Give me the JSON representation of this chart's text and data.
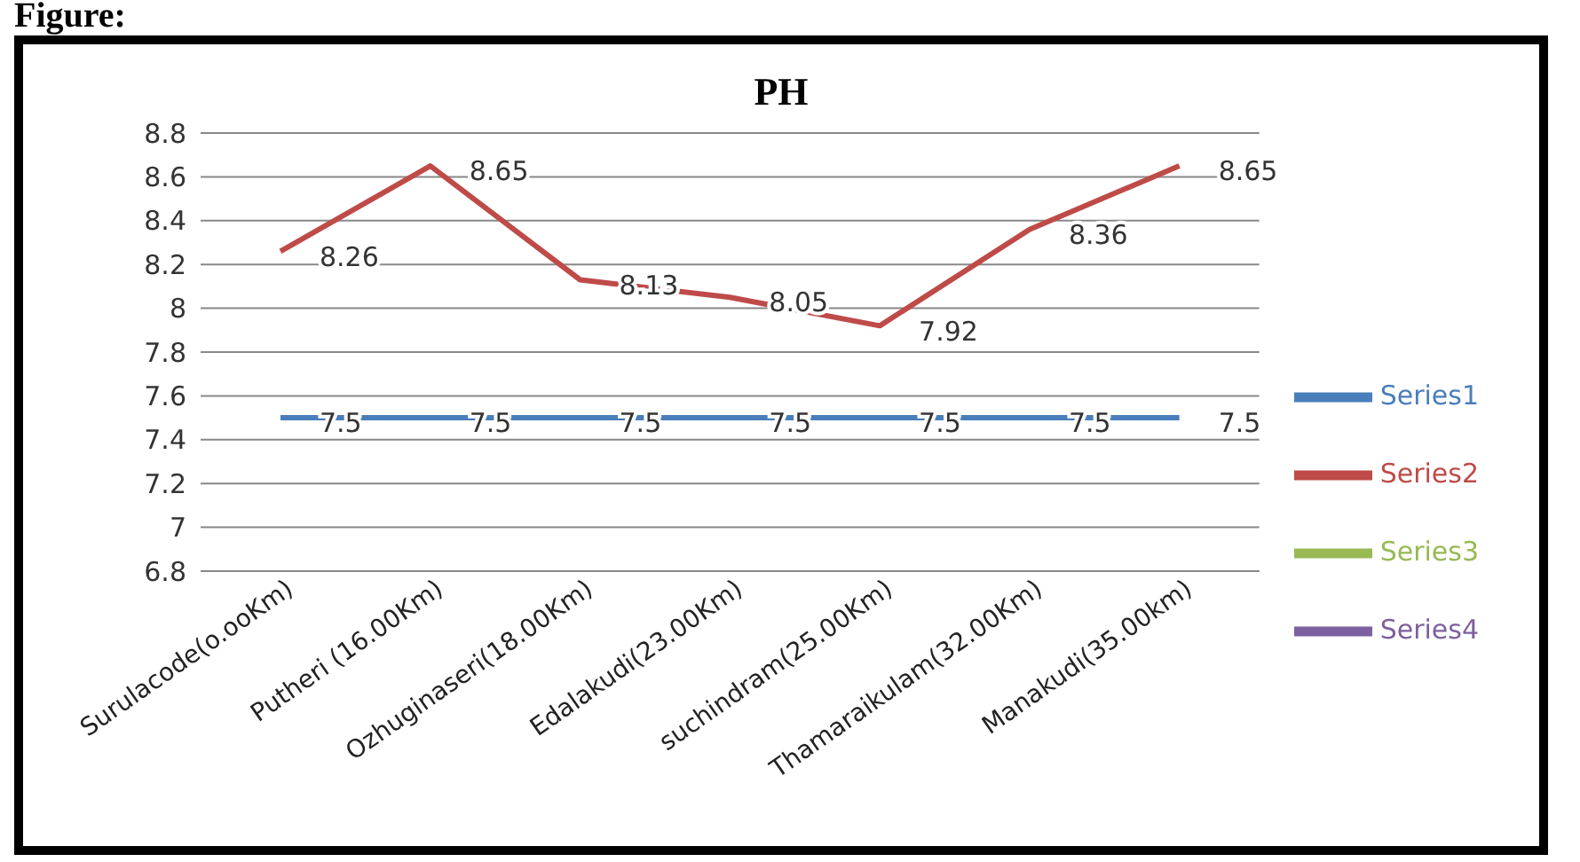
{
  "chart_data": {
    "type": "line",
    "title": "PH",
    "annotations": [
      "Figure:"
    ],
    "categories": [
      "Surulacode(o.ooKm)",
      "Putheri (16.00Km)",
      "Ozhuginaseri(18.00Km)",
      "Edalakudi(23.00Km)",
      "suchindram(25.00Km)",
      "Thamaraikulam(32.00Km)",
      "Manakudi(35.00km)"
    ],
    "series": [
      {
        "name": "Series1",
        "color": "#4a7ebb",
        "values": [
          7.5,
          7.5,
          7.5,
          7.5,
          7.5,
          7.5,
          7.5
        ]
      },
      {
        "name": "Series2",
        "color": "#be4b48",
        "values": [
          8.26,
          8.65,
          8.13,
          8.05,
          7.92,
          8.36,
          8.65
        ]
      },
      {
        "name": "Series3",
        "color": "#98b954",
        "values": [
          null,
          null,
          null,
          null,
          null,
          null,
          null
        ]
      },
      {
        "name": "Series4",
        "color": "#7d60a0",
        "values": [
          null,
          null,
          null,
          null,
          null,
          null,
          null
        ]
      }
    ],
    "ylim": [
      6.8,
      8.8
    ],
    "yticks": [
      6.8,
      7,
      7.2,
      7.4,
      7.6,
      7.8,
      8,
      8.2,
      8.4,
      8.6,
      8.8
    ],
    "grid": "y",
    "legend": "right",
    "marker": "none",
    "line_style": "solid",
    "data_labels": true
  }
}
